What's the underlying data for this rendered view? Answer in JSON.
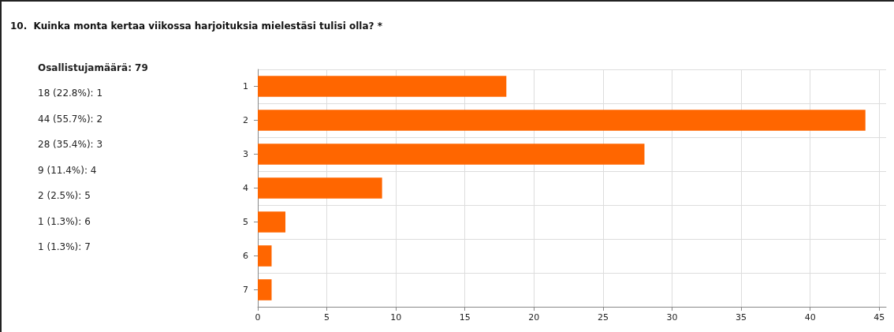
{
  "chart_data": {
    "type": "bar",
    "orientation": "horizontal",
    "title": "10.  Kuinka monta kertaa viikossa harjoituksia mielestäsi tulisi olla? *",
    "categories": [
      "1",
      "2",
      "3",
      "4",
      "5",
      "6",
      "7"
    ],
    "values": [
      18,
      44,
      28,
      9,
      2,
      1,
      1
    ],
    "color": "#ff6600",
    "xlim": [
      0,
      45.5
    ],
    "xticks": [
      0,
      5,
      10,
      15,
      20,
      25,
      30,
      35,
      40,
      45
    ],
    "grid": true,
    "annotations": [
      "Osallistujamäärä: 79",
      "18 (22.8%): 1",
      "44 (55.7%): 2",
      "28 (35.4%): 3",
      "9 (11.4%): 4",
      "2 (2.5%): 5",
      "1 (1.3%): 6",
      "1 (1.3%): 7"
    ]
  }
}
